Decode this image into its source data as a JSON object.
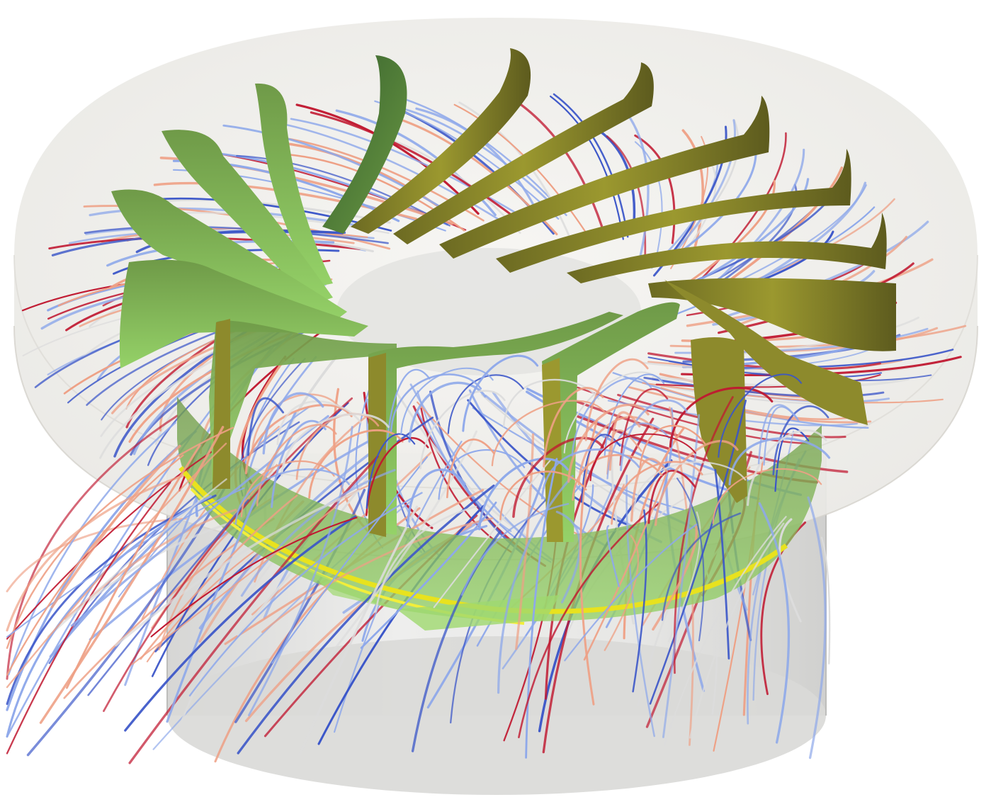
{
  "scene": {
    "subject": "turbine-runner-streamlines",
    "blade_count": 17,
    "colors": {
      "background": "#ffffff",
      "casing": "#efeeeb",
      "casing_edge": "#dcdad4",
      "hub_cylinder": "#dededc",
      "blade_light": "#8fcf64",
      "blade_mid": "#7fa04a",
      "blade_dark": "#3f6a30",
      "blade_olive": "#8d8a2c",
      "blade_edge_yellow": "#e8e21e",
      "stream_cold": "#3a55c8",
      "stream_cool": "#8ea8ea",
      "stream_neutral": "#dcdcdc",
      "stream_warm": "#eea085",
      "stream_hot": "#c01830"
    },
    "icons": [
      "casing-shape",
      "hub-cylinder-shape",
      "runner-blade-shape",
      "streamline-shape"
    ]
  }
}
